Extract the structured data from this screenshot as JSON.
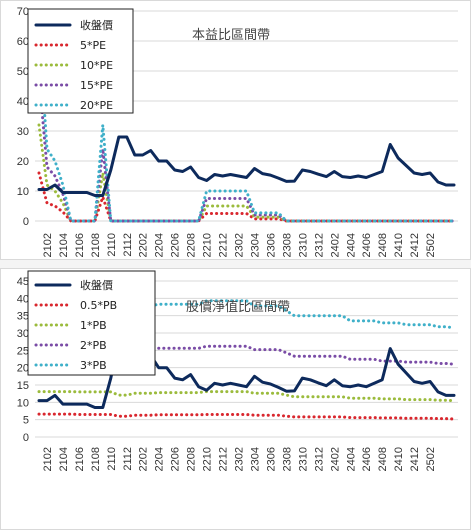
{
  "chart_data": [
    {
      "type": "line",
      "title": "本益比區間帶",
      "xlabel": "",
      "ylabel": "",
      "ylim": [
        0,
        70
      ],
      "yticks": [
        0,
        10,
        20,
        30,
        40,
        50,
        60,
        70
      ],
      "x_tick_labels": [
        "2102",
        "2104",
        "2106",
        "2108",
        "2110",
        "2112",
        "2202",
        "2204",
        "2206",
        "2208",
        "2210",
        "2212",
        "2302",
        "2304",
        "2306",
        "2308",
        "2310",
        "2312",
        "2402",
        "2404",
        "2406",
        "2408",
        "2410",
        "2412",
        "2502"
      ],
      "grid": "horizontal",
      "legend_position": "top-left",
      "series": [
        {
          "name": "收盤價",
          "color": "#0d2a5c",
          "style": "solid",
          "values": [
            10.5,
            10.5,
            12,
            9.5,
            9.5,
            9.5,
            9.5,
            8.5,
            8.5,
            17,
            28,
            28,
            22,
            22,
            23.5,
            20,
            20,
            17,
            16.5,
            18,
            14.5,
            13.5,
            15.5,
            15,
            15.5,
            15,
            14.5,
            17.5,
            15.8,
            15.3,
            14.3,
            13.2,
            13.3,
            17,
            16.5,
            15.6,
            14.8,
            16.5,
            14.8,
            14.5,
            15,
            14.5,
            15.5,
            16.5,
            25.5,
            21,
            18.5,
            16,
            15.5,
            16,
            13,
            12,
            12
          ]
        },
        {
          "name": "5*PE",
          "color": "#d9272e",
          "style": "dotted",
          "values": [
            16,
            6,
            5,
            3,
            0,
            0,
            0,
            0,
            8,
            0,
            0,
            0,
            0,
            0,
            0,
            0,
            0,
            0,
            0,
            0,
            0,
            2.5,
            2.5,
            2.5,
            2.5,
            2.5,
            2.5,
            0.7,
            0.7,
            0.7,
            0.7,
            0,
            0,
            0,
            0,
            0,
            0,
            0,
            0,
            0,
            0,
            0,
            0,
            0,
            0,
            0,
            0,
            0,
            0,
            0,
            0,
            0,
            0
          ]
        },
        {
          "name": "10*PE",
          "color": "#9bbb3c",
          "style": "dotted",
          "values": [
            32,
            12,
            10,
            6,
            0,
            0,
            0,
            0,
            16,
            0,
            0,
            0,
            0,
            0,
            0,
            0,
            0,
            0,
            0,
            0,
            0,
            5,
            5,
            5,
            5,
            5,
            5,
            1.3,
            1.3,
            1.3,
            1.3,
            0,
            0,
            0,
            0,
            0,
            0,
            0,
            0,
            0,
            0,
            0,
            0,
            0,
            0,
            0,
            0,
            0,
            0,
            0,
            0,
            0,
            0
          ]
        },
        {
          "name": "15*PE",
          "color": "#7a4ca6",
          "style": "dotted",
          "values": [
            48,
            18,
            15,
            9,
            0,
            0,
            0,
            0,
            24,
            0,
            0,
            0,
            0,
            0,
            0,
            0,
            0,
            0,
            0,
            0,
            0,
            7.5,
            7.5,
            7.5,
            7.5,
            7.5,
            7.5,
            2,
            2,
            2,
            2,
            0,
            0,
            0,
            0,
            0,
            0,
            0,
            0,
            0,
            0,
            0,
            0,
            0,
            0,
            0,
            0,
            0,
            0,
            0,
            0,
            0,
            0
          ]
        },
        {
          "name": "20*PE",
          "color": "#3fb0c9",
          "style": "dotted",
          "values": [
            64,
            24,
            20,
            12,
            0,
            0,
            0,
            0,
            32,
            0,
            0,
            0,
            0,
            0,
            0,
            0,
            0,
            0,
            0,
            0,
            0,
            10,
            10,
            10,
            10,
            10,
            10,
            2.7,
            2.7,
            2.7,
            2.7,
            0,
            0,
            0,
            0,
            0,
            0,
            0,
            0,
            0,
            0,
            0,
            0,
            0,
            0,
            0,
            0,
            0,
            0,
            0,
            0,
            0,
            0
          ]
        }
      ]
    },
    {
      "type": "line",
      "title": "股價淨值比區間帶",
      "xlabel": "",
      "ylabel": "",
      "ylim": [
        0,
        45
      ],
      "yticks": [
        0,
        5,
        10,
        15,
        20,
        25,
        30,
        35,
        40,
        45
      ],
      "x_tick_labels": [
        "2102",
        "2104",
        "2106",
        "2108",
        "2110",
        "2112",
        "2202",
        "2204",
        "2206",
        "2208",
        "2210",
        "2212",
        "2302",
        "2304",
        "2306",
        "2308",
        "2310",
        "2312",
        "2402",
        "2404",
        "2406",
        "2408",
        "2410",
        "2412",
        "2502"
      ],
      "grid": "horizontal",
      "legend_position": "top-left",
      "series": [
        {
          "name": "收盤價",
          "color": "#0d2a5c",
          "style": "solid",
          "values": [
            10.5,
            10.5,
            12,
            9.5,
            9.5,
            9.5,
            9.5,
            8.5,
            8.5,
            17,
            28,
            28,
            22,
            22,
            23.5,
            20,
            20,
            17,
            16.5,
            18,
            14.5,
            13.5,
            15.5,
            15,
            15.5,
            15,
            14.5,
            17.5,
            15.8,
            15.3,
            14.3,
            13.2,
            13.3,
            17,
            16.5,
            15.6,
            14.8,
            16.5,
            14.8,
            14.5,
            15,
            14.5,
            15.5,
            16.5,
            25.5,
            21,
            18.5,
            16,
            15.5,
            16,
            13,
            12,
            12
          ]
        },
        {
          "name": "0.5*PB",
          "color": "#d9272e",
          "style": "dotted",
          "values": [
            6.6,
            6.6,
            6.6,
            6.6,
            6.6,
            6.5,
            6.5,
            6.5,
            6.5,
            6.5,
            6,
            6,
            6.3,
            6.3,
            6.3,
            6.4,
            6.4,
            6.4,
            6.4,
            6.4,
            6.4,
            6.5,
            6.5,
            6.5,
            6.5,
            6.5,
            6.5,
            6.3,
            6.3,
            6.3,
            6.3,
            6,
            5.8,
            5.8,
            5.8,
            5.8,
            5.8,
            5.8,
            5.8,
            5.6,
            5.6,
            5.6,
            5.6,
            5.5,
            5.5,
            5.5,
            5.4,
            5.4,
            5.4,
            5.4,
            5.3,
            5.3,
            5.2
          ]
        },
        {
          "name": "1*PB",
          "color": "#9bbb3c",
          "style": "dotted",
          "values": [
            13.1,
            13.1,
            13.1,
            13.1,
            13.1,
            13,
            13,
            13,
            13,
            13,
            12.1,
            12.1,
            12.6,
            12.6,
            12.6,
            12.8,
            12.8,
            12.8,
            12.8,
            12.8,
            12.8,
            13.1,
            13.1,
            13.1,
            13.1,
            13.1,
            13.1,
            12.6,
            12.6,
            12.6,
            12.6,
            12.1,
            11.6,
            11.6,
            11.6,
            11.6,
            11.6,
            11.6,
            11.6,
            11.2,
            11.2,
            11.2,
            11.2,
            11,
            11,
            11,
            10.8,
            10.8,
            10.8,
            10.8,
            10.6,
            10.6,
            10.5
          ]
        },
        {
          "name": "2*PB",
          "color": "#7a4ca6",
          "style": "dotted",
          "values": [
            26.2,
            26.2,
            26.2,
            26.2,
            26.2,
            26,
            26,
            26,
            26,
            26,
            24.3,
            24.3,
            25.2,
            25.2,
            25.2,
            25.6,
            25.6,
            25.6,
            25.6,
            25.6,
            25.6,
            26.2,
            26.2,
            26.2,
            26.2,
            26.2,
            26.2,
            25.2,
            25.2,
            25.2,
            25.2,
            24.3,
            23.3,
            23.3,
            23.3,
            23.3,
            23.3,
            23.3,
            23.3,
            22.4,
            22.4,
            22.4,
            22.4,
            21.9,
            21.9,
            21.9,
            21.6,
            21.6,
            21.6,
            21.6,
            21.2,
            21.2,
            21
          ]
        },
        {
          "name": "3*PB",
          "color": "#3fb0c9",
          "style": "dotted",
          "values": [
            39.3,
            39.3,
            39.3,
            39.3,
            39.3,
            39,
            39,
            39,
            39,
            39,
            36.4,
            36.4,
            37.8,
            37.8,
            37.8,
            38.3,
            38.3,
            38.3,
            38.3,
            38.3,
            38.3,
            39.3,
            39.3,
            39.3,
            39.3,
            39.3,
            39.3,
            37.8,
            37.8,
            37.8,
            37.8,
            36.4,
            35,
            35,
            35,
            35,
            35,
            35,
            35,
            33.5,
            33.5,
            33.5,
            33.5,
            32.9,
            32.9,
            32.9,
            32.4,
            32.4,
            32.4,
            32.4,
            31.8,
            31.8,
            31.5
          ]
        }
      ]
    }
  ]
}
